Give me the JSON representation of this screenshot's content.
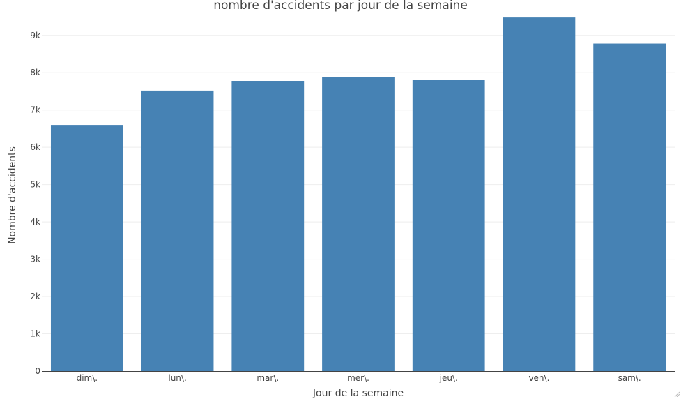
{
  "chart_data": {
    "type": "bar",
    "title": "nombre d'accidents par jour de la semaine",
    "xlabel": "Jour de la semaine",
    "ylabel": "Nombre d'accidents",
    "categories": [
      "dim\\.",
      "lun\\.",
      "mar\\.",
      "mer\\.",
      "jeu\\.",
      "ven\\.",
      "sam\\."
    ],
    "values": [
      6600,
      7520,
      7780,
      7890,
      7800,
      9480,
      8780
    ],
    "ylim": [
      0,
      9800
    ],
    "yticks": [
      0,
      1000,
      2000,
      3000,
      4000,
      5000,
      6000,
      7000,
      8000,
      9000
    ],
    "ytick_labels": [
      "0",
      "1k",
      "2k",
      "3k",
      "4k",
      "5k",
      "6k",
      "7k",
      "8k",
      "9k"
    ],
    "grid": true,
    "bar_color": "#4682b4",
    "grid_color": "#eeeeee",
    "text_color": "#444444"
  }
}
